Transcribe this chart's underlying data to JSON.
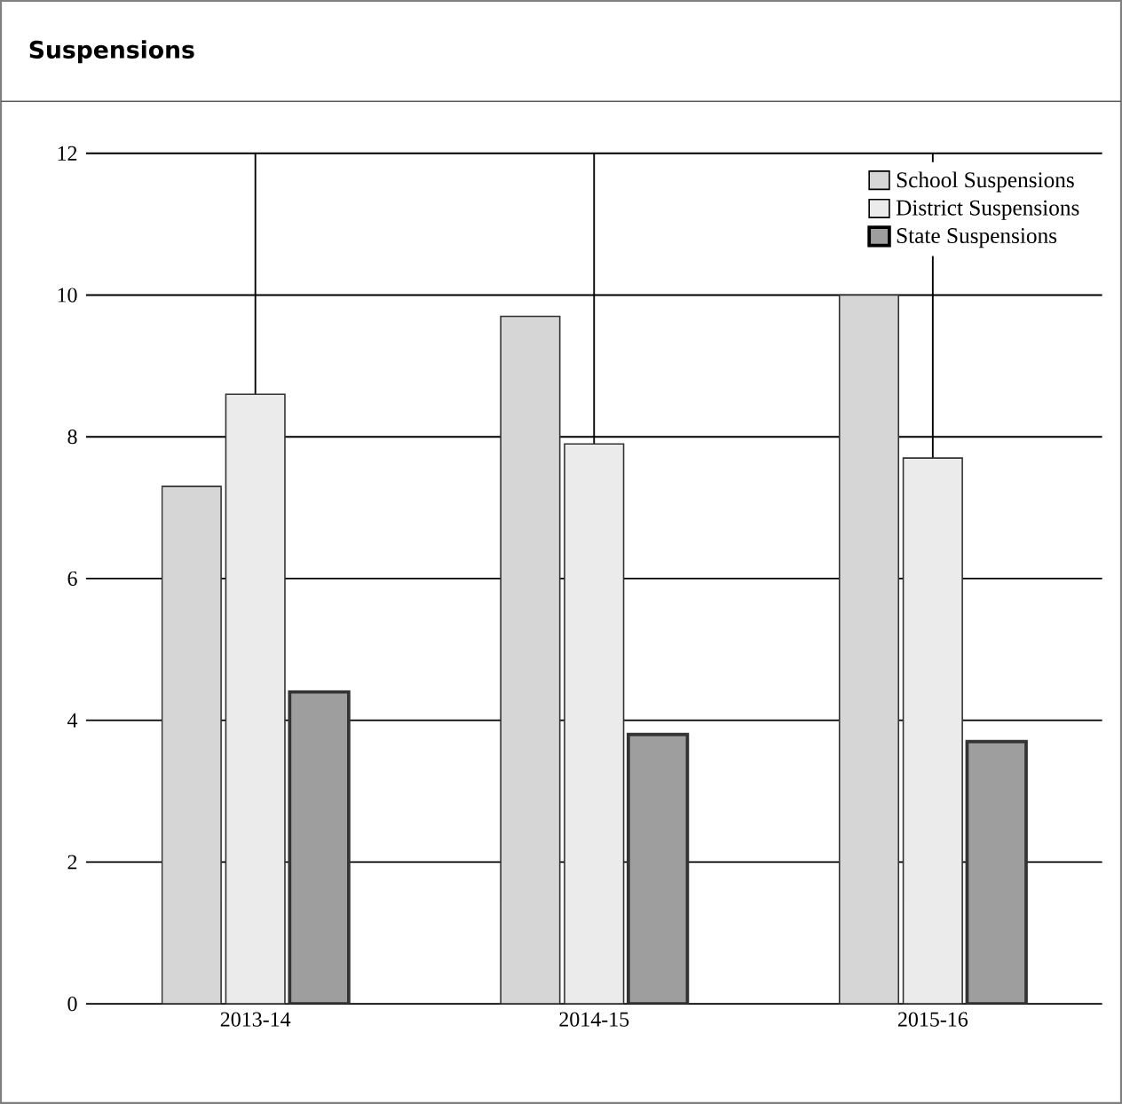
{
  "chart_data": {
    "type": "bar",
    "title": "Suspensions",
    "categories": [
      "2013-14",
      "2014-15",
      "2015-16"
    ],
    "series": [
      {
        "name": "School Suspensions",
        "color": "#d6d6d6",
        "values": [
          7.3,
          9.7,
          10.0
        ]
      },
      {
        "name": "District Suspensions",
        "color": "#ebebeb",
        "values": [
          8.6,
          7.9,
          7.7
        ]
      },
      {
        "name": "State Suspensions",
        "color": "#9e9e9e",
        "values": [
          4.4,
          3.8,
          3.7
        ]
      }
    ],
    "ylim": [
      0,
      12
    ],
    "yticks": [
      0,
      2,
      4,
      6,
      8,
      10,
      12
    ],
    "grid": true,
    "legend": "top right"
  }
}
